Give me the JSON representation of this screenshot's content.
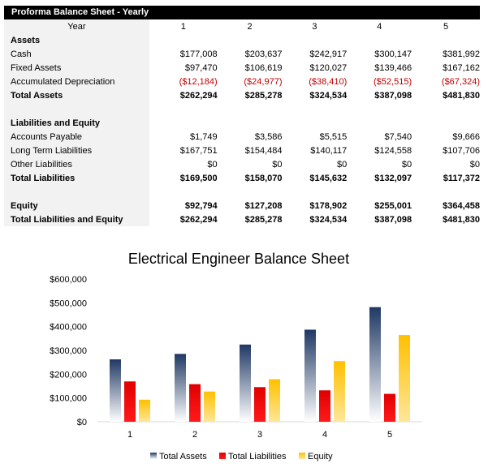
{
  "sheet": {
    "title": "Proforma Balance Sheet - Yearly",
    "header": {
      "label": "Year",
      "years": [
        "1",
        "2",
        "3",
        "4",
        "5"
      ]
    },
    "rows": [
      {
        "label": "Assets",
        "values": [
          "",
          "",
          "",
          "",
          ""
        ],
        "bold": true
      },
      {
        "label": "Cash",
        "values": [
          "$177,008",
          "$203,637",
          "$242,917",
          "$300,147",
          "$381,992"
        ]
      },
      {
        "label": "Fixed Assets",
        "values": [
          "$97,470",
          "$106,619",
          "$120,027",
          "$139,466",
          "$167,162"
        ]
      },
      {
        "label": "Accumulated Depreciation",
        "values": [
          "($12,184)",
          "($24,977)",
          "($38,410)",
          "($52,515)",
          "($67,324)"
        ],
        "negative": true
      },
      {
        "label": "Total Assets",
        "values": [
          "$262,294",
          "$285,278",
          "$324,534",
          "$387,098",
          "$481,830"
        ],
        "bold": true
      },
      {
        "label": "",
        "values": [
          "",
          "",
          "",
          "",
          ""
        ]
      },
      {
        "label": "Liabilities and Equity",
        "values": [
          "",
          "",
          "",
          "",
          ""
        ],
        "bold": true
      },
      {
        "label": "Accounts Payable",
        "values": [
          "$1,749",
          "$3,586",
          "$5,515",
          "$7,540",
          "$9,666"
        ]
      },
      {
        "label": "Long Term Liabilities",
        "values": [
          "$167,751",
          "$154,484",
          "$140,117",
          "$124,558",
          "$107,706"
        ]
      },
      {
        "label": "Other Liabilities",
        "values": [
          "$0",
          "$0",
          "$0",
          "$0",
          "$0"
        ]
      },
      {
        "label": "Total Liabilities",
        "values": [
          "$169,500",
          "$158,070",
          "$145,632",
          "$132,097",
          "$117,372"
        ],
        "bold": true
      },
      {
        "label": "",
        "values": [
          "",
          "",
          "",
          "",
          ""
        ]
      },
      {
        "label": "Equity",
        "values": [
          "$92,794",
          "$127,208",
          "$178,902",
          "$255,001",
          "$364,458"
        ],
        "bold": true
      },
      {
        "label": "Total Liabilities and Equity",
        "values": [
          "$262,294",
          "$285,278",
          "$324,534",
          "$387,098",
          "$481,830"
        ],
        "bold": true
      }
    ]
  },
  "chart_data": {
    "type": "bar",
    "title": "Electrical Engineer Balance Sheet",
    "categories": [
      "1",
      "2",
      "3",
      "4",
      "5"
    ],
    "series": [
      {
        "name": "Total Assets",
        "values": [
          262294,
          285278,
          324534,
          387098,
          481830
        ],
        "color": "#1f3864"
      },
      {
        "name": "Total Liabilities",
        "values": [
          169500,
          158070,
          145632,
          132097,
          117372
        ],
        "color": "#e00000"
      },
      {
        "name": "Equity",
        "values": [
          92794,
          127208,
          178902,
          255001,
          364458
        ],
        "color": "#ffc000"
      }
    ],
    "yticks": [
      "$0",
      "$100,000",
      "$200,000",
      "$300,000",
      "$400,000",
      "$500,000",
      "$600,000"
    ],
    "ylim": [
      0,
      600000
    ],
    "xlabel": "",
    "ylabel": "",
    "legend": "bottom",
    "grid": false
  }
}
